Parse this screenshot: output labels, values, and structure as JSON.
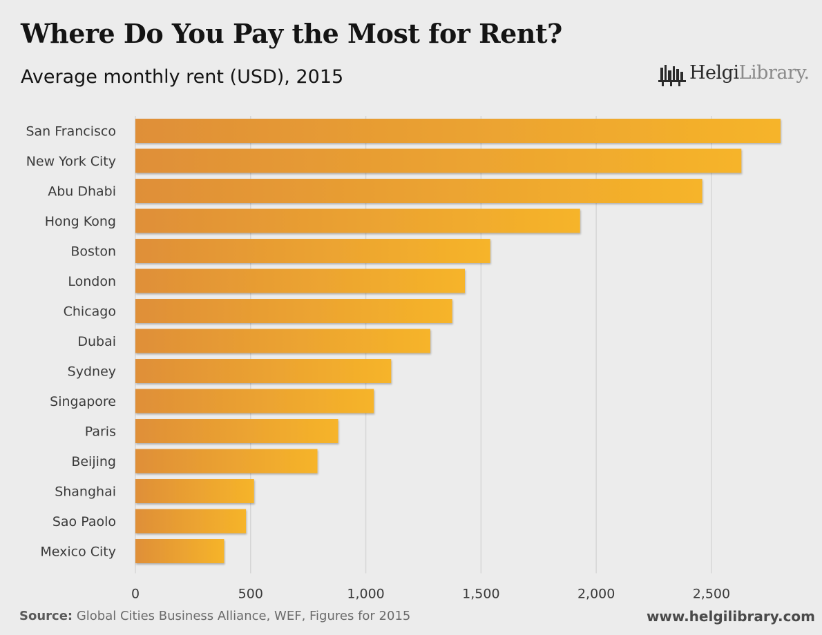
{
  "header": {
    "title": "Where Do You Pay the Most for Rent?",
    "subtitle": "Average monthly rent (USD), 2015"
  },
  "logo": {
    "strong": "Helgi",
    "light": "Library."
  },
  "footer": {
    "source_label": "Source:",
    "source_text": " Global Cities Business Alliance, WEF, Figures for 2015",
    "website": "www.helgilibrary.com"
  },
  "colors": {
    "bar_start": "#df8f38",
    "bar_end": "#f6b42a",
    "gridline": "#d6d6d6",
    "background": "#ececec"
  },
  "chart_data": {
    "type": "bar",
    "orientation": "horizontal",
    "title": "Where Do You Pay the Most for Rent?",
    "subtitle": "Average monthly rent (USD), 2015",
    "categories": [
      "San Francisco",
      "New York City",
      "Abu Dhabi",
      "Hong Kong",
      "Boston",
      "London",
      "Chicago",
      "Dubai",
      "Sydney",
      "Singapore",
      "Paris",
      "Beijing",
      "Shanghai",
      "Sao Paolo",
      "Mexico City"
    ],
    "values": [
      2800,
      2630,
      2460,
      1930,
      1540,
      1430,
      1375,
      1280,
      1110,
      1035,
      880,
      790,
      515,
      480,
      385
    ],
    "xlim": [
      0,
      2800
    ],
    "xticks": [
      0,
      500,
      1000,
      1500,
      2000,
      2500
    ],
    "xtick_labels": [
      "0",
      "500",
      "1,000",
      "1,500",
      "2,000",
      "2,500"
    ],
    "grid": true,
    "legend": "none"
  }
}
